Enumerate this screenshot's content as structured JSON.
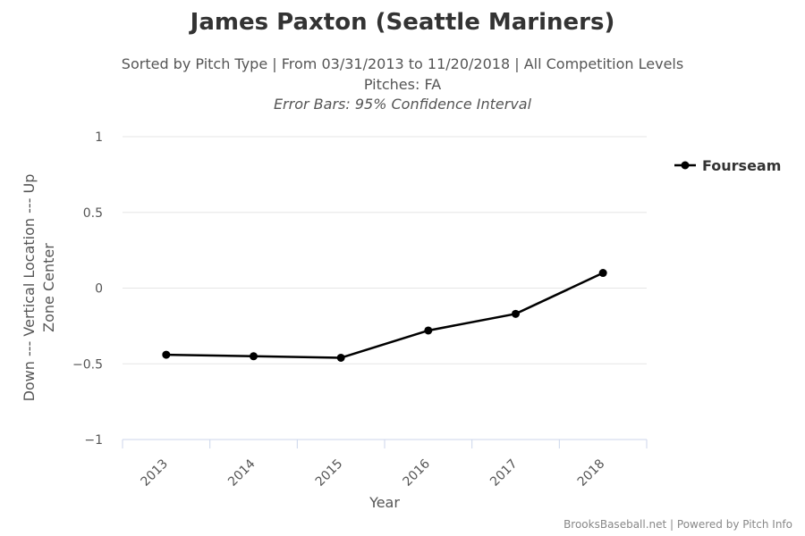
{
  "title": "James Paxton (Seattle Mariners)",
  "subtitle_line1": "Sorted by Pitch Type | From 03/31/2013 to 11/20/2018 | All Competition Levels",
  "subtitle_line2": "Pitches: FA",
  "subtitle_line3": "Error Bars: 95% Confidence Interval",
  "credits": "BrooksBaseball.net | Powered by Pitch Info",
  "colors": {
    "series": "#000000",
    "grid": "#e6e6e6",
    "axis": "#ccd6eb",
    "text": "#555555"
  },
  "chart_data": {
    "type": "line",
    "categories": [
      "2013",
      "2014",
      "2015",
      "2016",
      "2017",
      "2018"
    ],
    "series": [
      {
        "name": "Fourseam",
        "values": [
          -0.44,
          -0.45,
          -0.46,
          -0.28,
          -0.17,
          0.1
        ]
      }
    ],
    "ylabel_line1": "Down --- Vertical Location --- Up",
    "ylabel_line2": "Zone Center",
    "xlabel": "Year",
    "ylim": [
      -1,
      1
    ],
    "yticks": [
      1,
      0.5,
      0,
      -0.5,
      -1
    ],
    "ytick_labels": [
      "1",
      "0.5",
      "0",
      "−0.5",
      "−1"
    ],
    "grid": true,
    "legend_position": "right"
  }
}
